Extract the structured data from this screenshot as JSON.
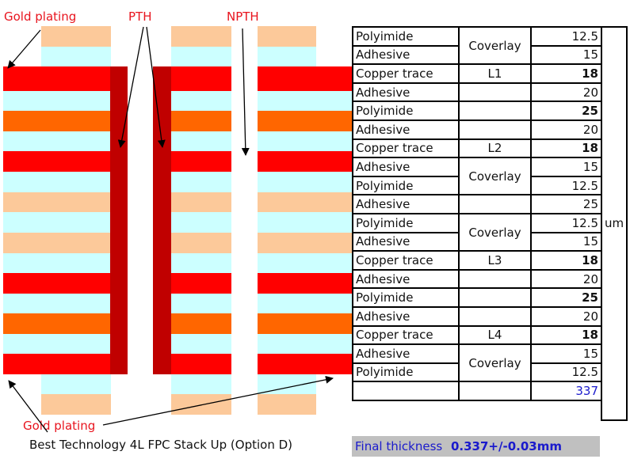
{
  "colors": {
    "copper": "#ff0000",
    "adhesive": "#ccffff",
    "polyimide_core": "#ff6600",
    "polyimide_coverlay": "#fcc99a",
    "pth_wall": "#c00000",
    "label_red": "#e8141e",
    "final_bg": "#c0c0c0",
    "final_text": "#1a1acc"
  },
  "labels": {
    "gold_plating_top": "Gold plating",
    "pth": "PTH",
    "npth": "NPTH",
    "gold_plating_bottom": "Gold plating",
    "caption": "Best Technology 4L FPC Stack Up (Option D)"
  },
  "stack_rows": [
    {
      "material": "Polyimide",
      "group": "Coverlay",
      "value": "12.5",
      "bold": false
    },
    {
      "material": "Adhesive",
      "group": "",
      "value": "15",
      "bold": false
    },
    {
      "material": "Copper trace",
      "group": "L1",
      "value": "18",
      "bold": true
    },
    {
      "material": "Adhesive",
      "group": "",
      "value": "20",
      "bold": false
    },
    {
      "material": "Polyimide",
      "group": "",
      "value": "25",
      "bold": true
    },
    {
      "material": "Adhesive",
      "group": "",
      "value": "20",
      "bold": false
    },
    {
      "material": "Copper trace",
      "group": "L2",
      "value": "18",
      "bold": true
    },
    {
      "material": "Adhesive",
      "group": "Coverlay",
      "value": "15",
      "bold": false
    },
    {
      "material": "Polyimide",
      "group": "",
      "value": "12.5",
      "bold": false
    },
    {
      "material": "Adhesive",
      "group": "",
      "value": "25",
      "bold": false
    },
    {
      "material": "Polyimide",
      "group": "Coverlay",
      "value": "12.5",
      "bold": false
    },
    {
      "material": "Adhesive",
      "group": "",
      "value": "15",
      "bold": false
    },
    {
      "material": "Copper trace",
      "group": "L3",
      "value": "18",
      "bold": true
    },
    {
      "material": "Adhesive",
      "group": "",
      "value": "20",
      "bold": false
    },
    {
      "material": "Polyimide",
      "group": "",
      "value": "25",
      "bold": true
    },
    {
      "material": "Adhesive",
      "group": "",
      "value": "20",
      "bold": false
    },
    {
      "material": "Copper trace",
      "group": "L4",
      "value": "18",
      "bold": true
    },
    {
      "material": "Adhesive",
      "group": "Coverlay",
      "value": "15",
      "bold": false
    },
    {
      "material": "Polyimide",
      "group": "",
      "value": "12.5",
      "bold": false
    }
  ],
  "unit": "um",
  "total": "337",
  "final": {
    "label": "Final thickness",
    "value": "0.337+/-0.03mm"
  }
}
